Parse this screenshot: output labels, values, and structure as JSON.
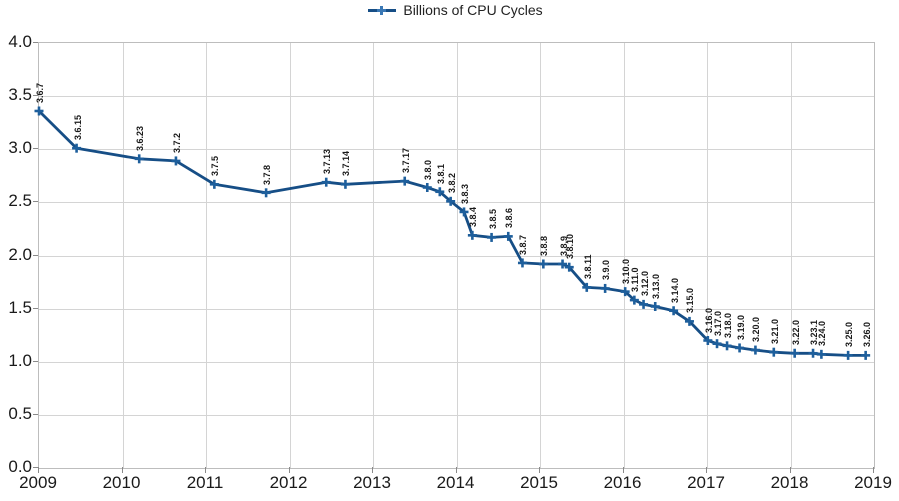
{
  "legend": {
    "label": "Billions of CPU Cycles"
  },
  "chart_data": {
    "type": "line",
    "title": "",
    "series_name": "Billions of CPU Cycles",
    "legend_position": "top-center",
    "grid": true,
    "x_axis": {
      "min": 2009,
      "max": 2019,
      "ticks": [
        "2009",
        "2010",
        "2011",
        "2012",
        "2013",
        "2014",
        "2015",
        "2016",
        "2017",
        "2018",
        "2019"
      ]
    },
    "y_axis": {
      "min": 0.0,
      "max": 4.0,
      "step": 0.5,
      "ticks": [
        "4.0",
        "3.5",
        "3.0",
        "2.5",
        "2.0",
        "1.5",
        "1.0",
        "0.5",
        "0.0"
      ]
    },
    "colors": {
      "line": "#164e86",
      "marker": "#1e5f9c",
      "grid": "#d4d4d4",
      "text": "#1a1a1a"
    },
    "points": [
      {
        "label": "3.6.7",
        "x": 2009.0,
        "y": 3.36
      },
      {
        "label": "3.6.15",
        "x": 2009.45,
        "y": 3.01
      },
      {
        "label": "3.6.23",
        "x": 2010.2,
        "y": 2.91
      },
      {
        "label": "3.7.2",
        "x": 2010.64,
        "y": 2.89
      },
      {
        "label": "3.7.5",
        "x": 2011.1,
        "y": 2.67
      },
      {
        "label": "3.7.8",
        "x": 2011.72,
        "y": 2.59
      },
      {
        "label": "3.7.13",
        "x": 2012.44,
        "y": 2.69
      },
      {
        "label": "3.7.14",
        "x": 2012.67,
        "y": 2.67
      },
      {
        "label": "3.7.17",
        "x": 2013.38,
        "y": 2.7
      },
      {
        "label": "3.8.0",
        "x": 2013.65,
        "y": 2.64
      },
      {
        "label": "3.8.1",
        "x": 2013.8,
        "y": 2.6
      },
      {
        "label": "3.8.2",
        "x": 2013.93,
        "y": 2.51
      },
      {
        "label": "3.8.3",
        "x": 2014.09,
        "y": 2.41
      },
      {
        "label": "3.8.4",
        "x": 2014.19,
        "y": 2.19
      },
      {
        "label": "3.8.5",
        "x": 2014.42,
        "y": 2.17
      },
      {
        "label": "3.8.6",
        "x": 2014.62,
        "y": 2.18
      },
      {
        "label": "3.8.7",
        "x": 2014.79,
        "y": 1.93
      },
      {
        "label": "3.8.8",
        "x": 2015.04,
        "y": 1.92
      },
      {
        "label": "3.8.9",
        "x": 2015.27,
        "y": 1.92
      },
      {
        "label": "3.8.10",
        "x": 2015.35,
        "y": 1.89
      },
      {
        "label": "3.8.11",
        "x": 2015.56,
        "y": 1.7
      },
      {
        "label": "3.9.0",
        "x": 2015.78,
        "y": 1.69
      },
      {
        "label": "3.10.0",
        "x": 2016.02,
        "y": 1.66
      },
      {
        "label": "3.11.0",
        "x": 2016.13,
        "y": 1.58
      },
      {
        "label": "3.12.0",
        "x": 2016.24,
        "y": 1.54
      },
      {
        "label": "3.13.0",
        "x": 2016.38,
        "y": 1.52
      },
      {
        "label": "3.14.0",
        "x": 2016.6,
        "y": 1.48
      },
      {
        "label": "3.15.0",
        "x": 2016.79,
        "y": 1.38
      },
      {
        "label": "3.16.0",
        "x": 2017.01,
        "y": 1.2
      },
      {
        "label": "3.17.0",
        "x": 2017.12,
        "y": 1.17
      },
      {
        "label": "3.18.0",
        "x": 2017.24,
        "y": 1.15
      },
      {
        "label": "3.19.0",
        "x": 2017.39,
        "y": 1.13
      },
      {
        "label": "3.20.0",
        "x": 2017.58,
        "y": 1.11
      },
      {
        "label": "3.21.0",
        "x": 2017.8,
        "y": 1.09
      },
      {
        "label": "3.22.0",
        "x": 2018.05,
        "y": 1.08
      },
      {
        "label": "3.23.1",
        "x": 2018.27,
        "y": 1.08
      },
      {
        "label": "3.24.0",
        "x": 2018.37,
        "y": 1.07
      },
      {
        "label": "3.25.0",
        "x": 2018.69,
        "y": 1.06
      },
      {
        "label": "3.26.0",
        "x": 2018.9,
        "y": 1.06
      }
    ]
  }
}
